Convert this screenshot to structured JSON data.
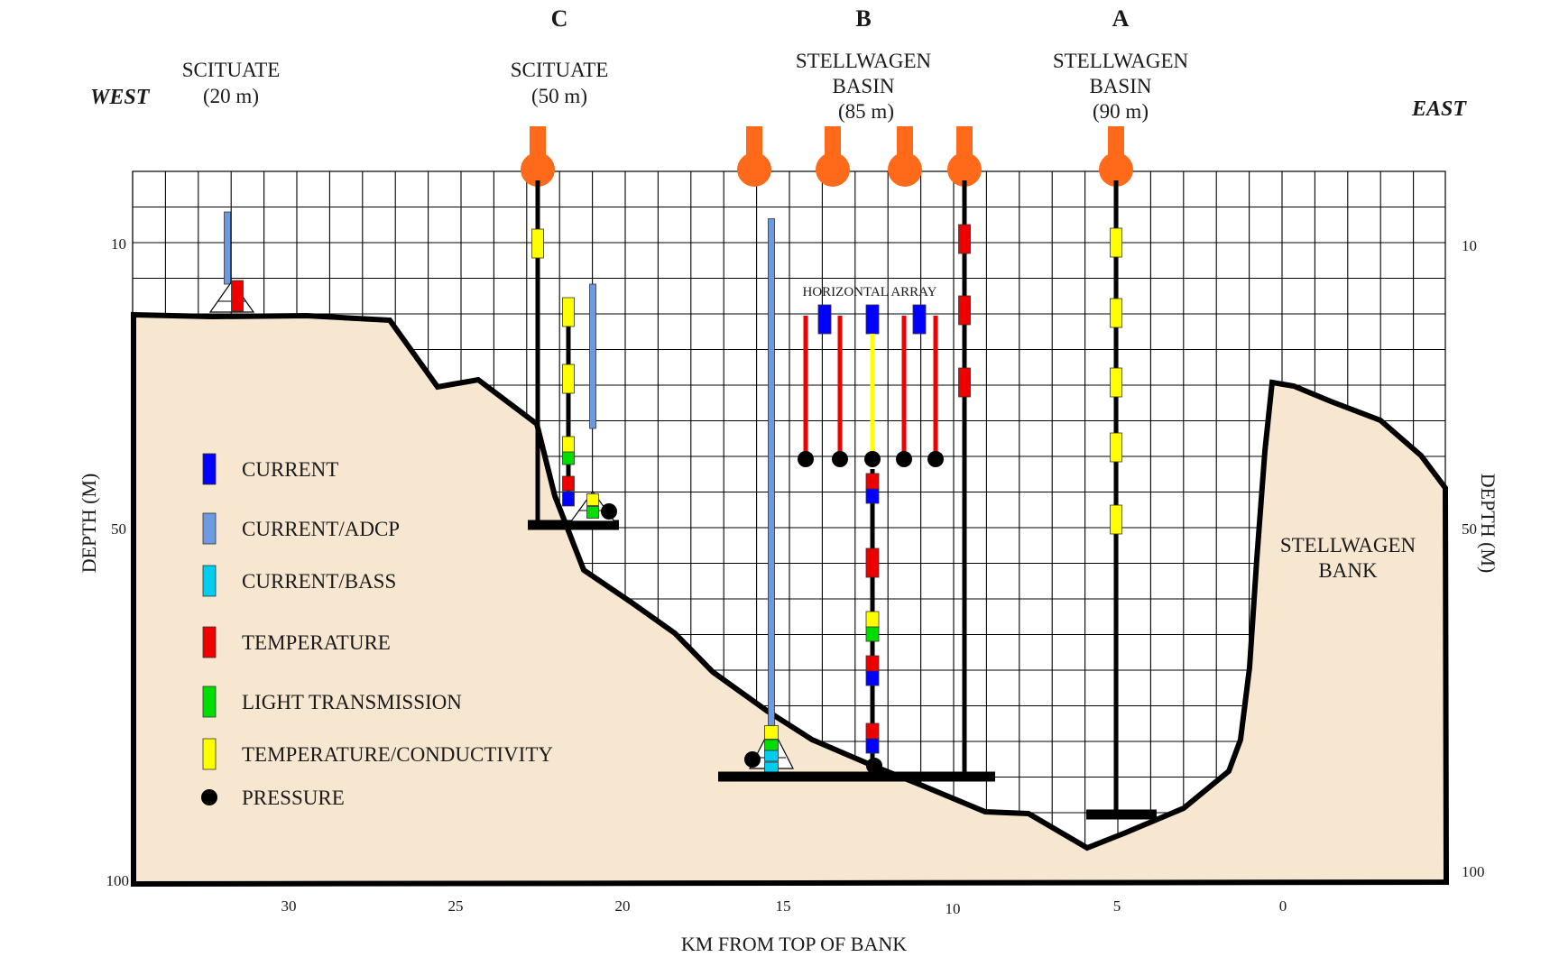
{
  "directions": {
    "west": "WEST",
    "east": "EAST"
  },
  "stations": [
    {
      "letter": "",
      "name_lines": [
        "SCITUATE",
        "(20 m)"
      ]
    },
    {
      "letter": "C",
      "name_lines": [
        "SCITUATE",
        "(50 m)"
      ]
    },
    {
      "letter": "B",
      "name_lines": [
        "STELLWAGEN",
        "BASIN",
        "(85 m)"
      ]
    },
    {
      "letter": "A",
      "name_lines": [
        "STELLWAGEN",
        "BASIN",
        "(90 m)"
      ]
    }
  ],
  "axes": {
    "x_title": "KM FROM TOP OF BANK",
    "x_ticks": [
      "30",
      "25",
      "20",
      "15",
      "10",
      "5",
      "0"
    ],
    "y_title_left": "DEPTH (M)",
    "y_title_right": "DEPTH (M)",
    "y_ticks_left": [
      "10",
      "50",
      "100"
    ],
    "y_ticks_right": [
      "10",
      "50",
      "100"
    ]
  },
  "annotations": {
    "horizontal_array": "HORIZONTAL ARRAY",
    "bank_line1": "STELLWAGEN",
    "bank_line2": "BANK"
  },
  "colors": {
    "sediment": "#f7e7d0",
    "current": "#0000ff",
    "current_adcp": "#6b9ae0",
    "current_bass": "#00ccee",
    "temperature": "#ee0000",
    "light_transmission": "#00dd00",
    "temperature_conductivity": "#ffff00",
    "pressure": "#000000",
    "buoy": "#ff6a1a"
  },
  "legend": [
    {
      "label": "CURRENT",
      "icon": "current-swatch"
    },
    {
      "label": "CURRENT/ADCP",
      "icon": "current-adcp-swatch"
    },
    {
      "label": "CURRENT/BASS",
      "icon": "current-bass-swatch"
    },
    {
      "label": "TEMPERATURE",
      "icon": "temperature-swatch"
    },
    {
      "label": "LIGHT TRANSMISSION",
      "icon": "light-transmission-swatch"
    },
    {
      "label": "TEMPERATURE/CONDUCTIVITY",
      "icon": "temperature-conductivity-swatch"
    },
    {
      "label": "PRESSURE",
      "icon": "pressure-dot"
    }
  ]
}
